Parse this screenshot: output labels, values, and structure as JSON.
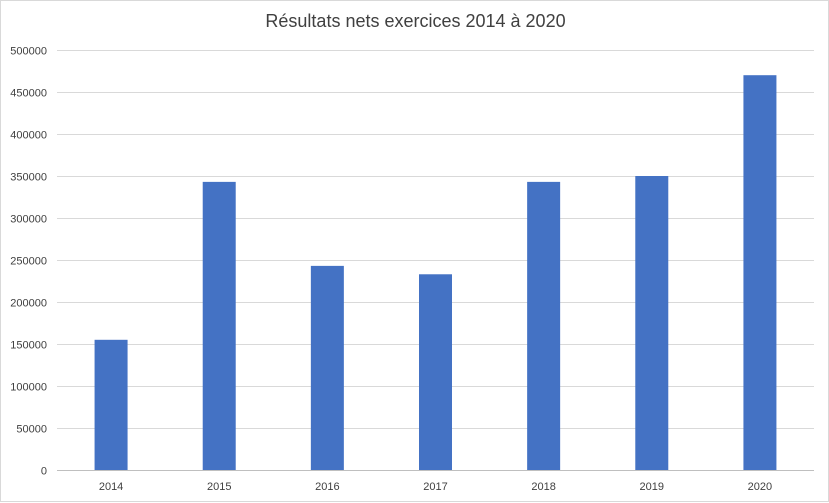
{
  "chart_data": {
    "type": "bar",
    "title": "Résultats nets exercices 2014 à 2020",
    "categories": [
      "2014",
      "2015",
      "2016",
      "2017",
      "2018",
      "2019",
      "2020"
    ],
    "series": [
      {
        "values": [
          155000,
          343000,
          243000,
          233000,
          343000,
          350000,
          470000
        ]
      }
    ],
    "ylim": [
      0,
      500000
    ],
    "yticks": [
      0,
      50000,
      100000,
      150000,
      200000,
      250000,
      300000,
      350000,
      400000,
      450000,
      500000
    ],
    "ytick_labels": [
      "0",
      "50000",
      "100000",
      "150000",
      "200000",
      "250000",
      "300000",
      "350000",
      "400000",
      "450000",
      "500000"
    ],
    "grid": true,
    "legend": "none",
    "colors": {
      "bar": "#4472C4",
      "grid": "#d9d9d9",
      "axis": "#bfbfbf",
      "text": "#404040"
    }
  }
}
